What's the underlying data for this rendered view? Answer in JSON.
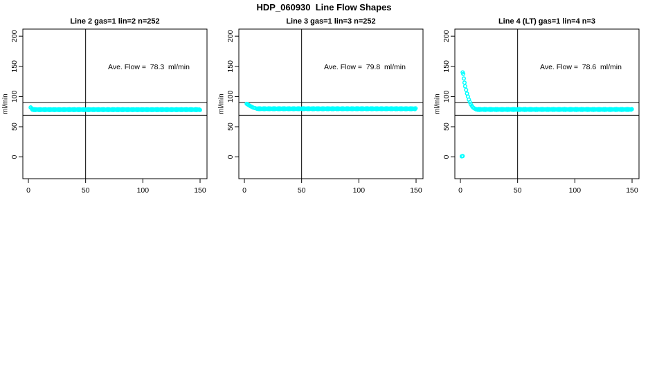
{
  "title": "HDP_060930  Line Flow Shapes",
  "colors": {
    "points": "#00ffff",
    "axis": "#000000",
    "background": "#ffffff"
  },
  "axes": {
    "x_ticks": [
      0,
      50,
      100,
      150
    ],
    "y_ticks": [
      0,
      50,
      100,
      150,
      200
    ],
    "y_label": "ml/min",
    "x_range": [
      0,
      150
    ],
    "y_range": [
      0,
      200
    ],
    "vline_x": 50,
    "hlines": [
      90,
      69
    ],
    "grid": false
  },
  "chart_data": [
    {
      "type": "scatter",
      "title": "Line 2 gas=1 lin=2 n=252",
      "annotation": "Ave. Flow =  78.3  ml/min",
      "ave_flow": 78.3,
      "n": 252,
      "transient": [
        [
          2,
          82
        ],
        [
          2.8,
          80.5
        ],
        [
          3.6,
          79.5
        ]
      ],
      "steady": {
        "x_start": 3.5,
        "x_end": 150,
        "value": 78.3,
        "spacing": 0.6
      },
      "outliers": []
    },
    {
      "type": "scatter",
      "title": "Line 3 gas=1 lin=3 n=252",
      "annotation": "Ave. Flow =  79.8  ml/min",
      "ave_flow": 79.8,
      "n": 252,
      "transient": [
        [
          2,
          88
        ],
        [
          2.7,
          87.2
        ],
        [
          3.4,
          86.3
        ],
        [
          4.2,
          85.3
        ],
        [
          5,
          84.4
        ],
        [
          6,
          83.4
        ],
        [
          7,
          82.4
        ],
        [
          8,
          81.5
        ],
        [
          9.5,
          80.7
        ],
        [
          11,
          80.1
        ]
      ],
      "steady": {
        "x_start": 11,
        "x_end": 150,
        "value": 79.8,
        "spacing": 0.6
      },
      "outliers": []
    },
    {
      "type": "scatter",
      "title": "Line 4 (LT) gas=1 lin=4 n=3",
      "annotation": "Ave. Flow =  78.6  ml/min",
      "ave_flow": 78.6,
      "n": 3,
      "transient": [
        [
          2,
          140
        ],
        [
          2.5,
          137.5
        ],
        [
          3,
          130
        ],
        [
          3.6,
          123
        ],
        [
          4.2,
          117
        ],
        [
          5,
          111
        ],
        [
          5.8,
          105
        ],
        [
          6.6,
          100
        ],
        [
          7.4,
          95
        ],
        [
          8.2,
          91
        ],
        [
          9,
          87.5
        ],
        [
          10,
          84.5
        ],
        [
          11,
          82
        ],
        [
          12,
          80.5
        ],
        [
          13,
          79.5
        ],
        [
          14,
          79
        ]
      ],
      "steady": {
        "x_start": 14,
        "x_end": 150,
        "value": 78.6,
        "spacing": 0.7
      },
      "outliers": [
        [
          1.2,
          1
        ],
        [
          2,
          1.5
        ]
      ]
    }
  ]
}
